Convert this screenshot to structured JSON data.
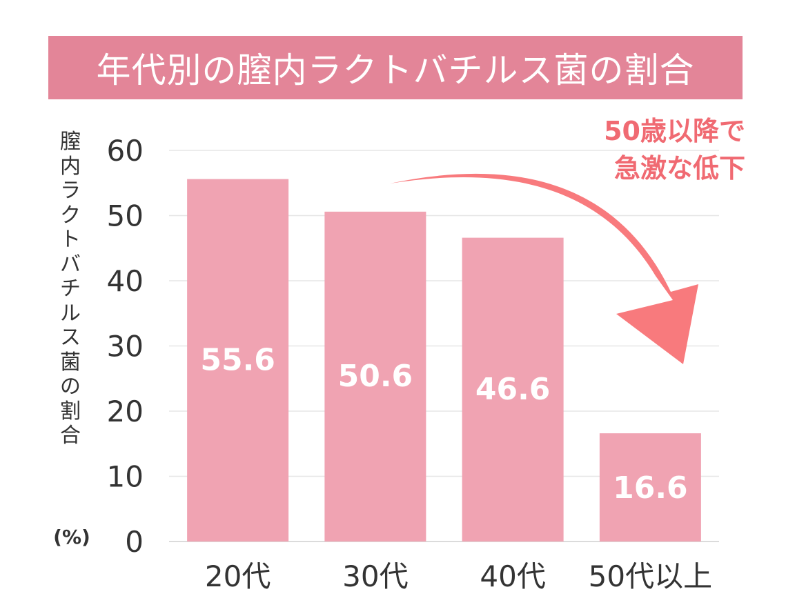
{
  "title": "年代別の膣内ラクトバチルス菌の割合",
  "callout": {
    "line1": "50歳以降で",
    "line2": "急激な低下"
  },
  "colors": {
    "banner": "#e38598",
    "bar": "#f0a3b2",
    "arrow": "#f87a7d",
    "callout_text": "#f06a72",
    "grid": "#e6e6e6",
    "axis_text": "#333333"
  },
  "chart_data": {
    "type": "bar",
    "categories": [
      "20代",
      "30代",
      "40代",
      "50代以上"
    ],
    "values": [
      55.6,
      50.6,
      46.6,
      16.6
    ],
    "data_labels": [
      "55.6",
      "50.6",
      "46.6",
      "16.6"
    ],
    "ylabel_chars": [
      "膣",
      "内",
      "ラ",
      "ク",
      "ト",
      "バ",
      "チ",
      "ル",
      "ス",
      "菌",
      "の",
      "割",
      "合"
    ],
    "ylabel_unit": "(%)",
    "yticks": [
      "0",
      "10",
      "20",
      "30",
      "40",
      "50",
      "60"
    ],
    "ylim": [
      0,
      60
    ],
    "grid": true
  }
}
